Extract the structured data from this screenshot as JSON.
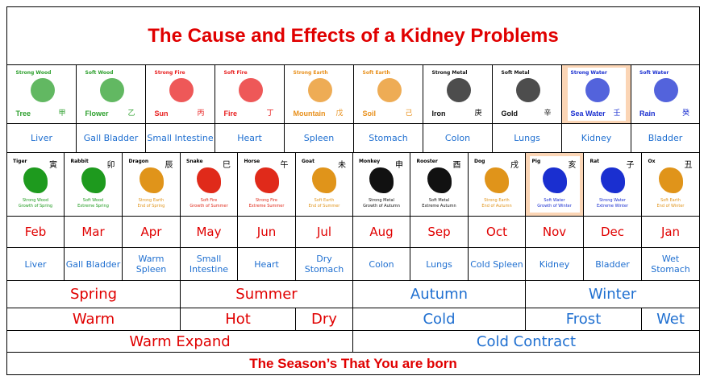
{
  "title": "The Cause and Effects of a Kidney Problems",
  "elements": [
    {
      "type": "Strong Wood",
      "name": "Tree",
      "char": "甲",
      "color": "#2ea02e",
      "organ": "Liver"
    },
    {
      "type": "Soft Wood",
      "name": "Flower",
      "char": "乙",
      "color": "#2ea02e",
      "organ": "Gall Bladder"
    },
    {
      "type": "Strong Fire",
      "name": "Sun",
      "char": "丙",
      "color": "#e82020",
      "organ": "Small Intestine"
    },
    {
      "type": "Soft Fire",
      "name": "Fire",
      "char": "丁",
      "color": "#e82020",
      "organ": "Heart"
    },
    {
      "type": "Strong Earth",
      "name": "Mountain",
      "char": "戊",
      "color": "#e8901c",
      "organ": "Spleen"
    },
    {
      "type": "Soft Earth",
      "name": "Soil",
      "char": "己",
      "color": "#e8901c",
      "organ": "Stomach"
    },
    {
      "type": "Strong Metal",
      "name": "Iron",
      "char": "庚",
      "color": "#111111",
      "organ": "Colon"
    },
    {
      "type": "Soft Metal",
      "name": "Gold",
      "char": "辛",
      "color": "#111111",
      "organ": "Lungs"
    },
    {
      "type": "Strong Water",
      "name": "Sea Water",
      "char": "壬",
      "color": "#1a2fd0",
      "organ": "Kidney",
      "highlight": true
    },
    {
      "type": "Soft Water",
      "name": "Rain",
      "char": "癸",
      "color": "#1a2fd0",
      "organ": "Bladder"
    }
  ],
  "zodiac": [
    {
      "animal": "Tiger",
      "char": "寅",
      "l1": "Strong Wood",
      "l2": "Growth of Spring",
      "color": "#1e9a1e",
      "month": "Feb",
      "organ": "Liver"
    },
    {
      "animal": "Rabbit",
      "char": "卯",
      "l1": "Soft Wood",
      "l2": "Extreme Spring",
      "color": "#1e9a1e",
      "month": "Mar",
      "organ": "Gall Bladder"
    },
    {
      "animal": "Dragon",
      "char": "辰",
      "l1": "Strong Earth",
      "l2": "End of Spring",
      "color": "#e0941a",
      "month": "Apr",
      "organ": "Warm Spleen"
    },
    {
      "animal": "Snake",
      "char": "巳",
      "l1": "Soft Fire",
      "l2": "Growth of Summer",
      "color": "#e02a1a",
      "month": "May",
      "organ": "Small Intestine"
    },
    {
      "animal": "Horse",
      "char": "午",
      "l1": "Strong Fire",
      "l2": "Extreme Summer",
      "color": "#e02a1a",
      "month": "Jun",
      "organ": "Heart"
    },
    {
      "animal": "Goat",
      "char": "未",
      "l1": "Soft Earth",
      "l2": "End of Summer",
      "color": "#e0941a",
      "month": "Jul",
      "organ": "Dry Stomach"
    },
    {
      "animal": "Monkey",
      "char": "申",
      "l1": "Strong Metal",
      "l2": "Growth of Autumn",
      "color": "#111111",
      "month": "Aug",
      "organ": "Colon"
    },
    {
      "animal": "Rooster",
      "char": "酉",
      "l1": "Soft Metal",
      "l2": "Extreme Autumn",
      "color": "#111111",
      "month": "Sep",
      "organ": "Lungs"
    },
    {
      "animal": "Dog",
      "char": "戌",
      "l1": "Strong Earth",
      "l2": "End of Autumn",
      "color": "#e0941a",
      "month": "Oct",
      "organ": "Cold Spleen"
    },
    {
      "animal": "Pig",
      "char": "亥",
      "l1": "Soft Water",
      "l2": "Growth of Winter",
      "color": "#1a2fd0",
      "month": "Nov",
      "organ": "Kidney",
      "highlight": true
    },
    {
      "animal": "Rat",
      "char": "子",
      "l1": "Strong Water",
      "l2": "Extreme Winter",
      "color": "#1a2fd0",
      "month": "Dec",
      "organ": "Bladder"
    },
    {
      "animal": "Ox",
      "char": "丑",
      "l1": "Soft Earth",
      "l2": "End of Winter",
      "color": "#e0941a",
      "month": "Jan",
      "organ": "Wet Stomach"
    }
  ],
  "seasons": [
    {
      "label": "Spring",
      "tone": "red"
    },
    {
      "label": "Summer",
      "tone": "red"
    },
    {
      "label": "Autumn",
      "tone": "blue"
    },
    {
      "label": "Winter",
      "tone": "blue"
    }
  ],
  "climates": [
    {
      "label": "Warm",
      "tone": "red"
    },
    {
      "label": "Hot",
      "tone": "red"
    },
    {
      "label": "Dry",
      "tone": "red"
    },
    {
      "label": "Cold",
      "tone": "blue"
    },
    {
      "label": "Frost",
      "tone": "blue"
    },
    {
      "label": "Wet",
      "tone": "blue"
    }
  ],
  "phases": [
    {
      "label": "Warm Expand",
      "tone": "red"
    },
    {
      "label": "Cold Contract",
      "tone": "blue"
    }
  ],
  "footer": "The Season’s That You are born",
  "colors": {
    "red": "#e00000",
    "blue": "#1f6fd0",
    "highlight": "#fbd5b5"
  }
}
